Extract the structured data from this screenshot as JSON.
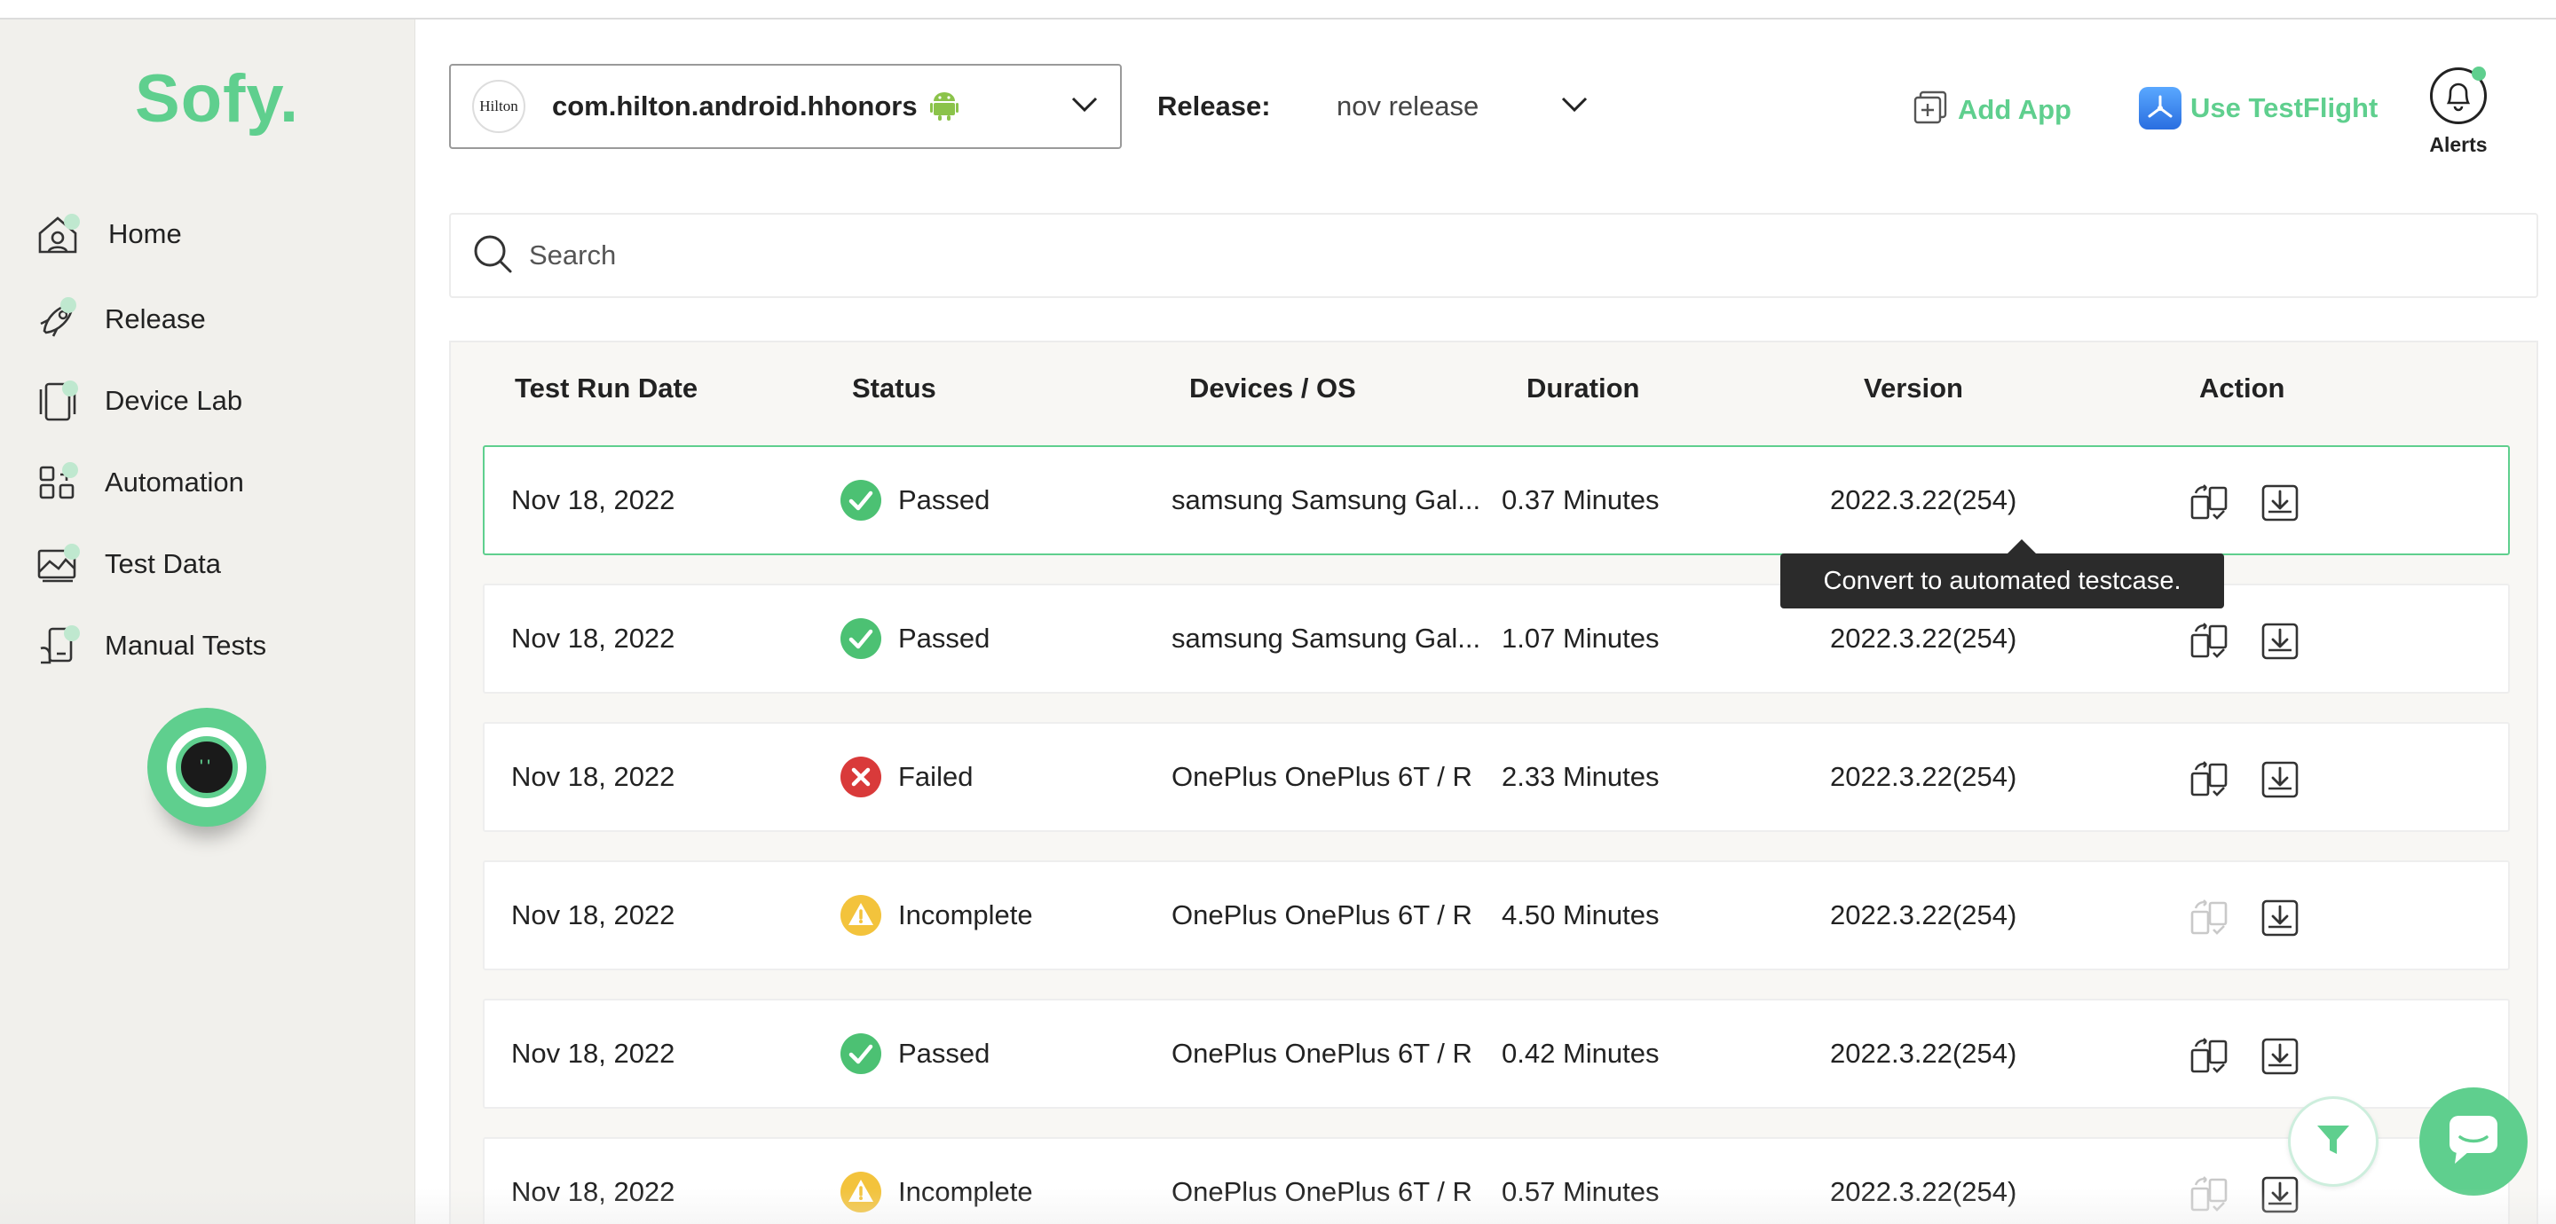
{
  "brand": {
    "logo": "Sofy."
  },
  "sidebar": {
    "items": [
      {
        "label": "Home",
        "icon": "home-icon"
      },
      {
        "label": "Release",
        "icon": "rocket-icon"
      },
      {
        "label": "Device Lab",
        "icon": "device-icon"
      },
      {
        "label": "Automation",
        "icon": "automation-icon"
      },
      {
        "label": "Test Data",
        "icon": "test-data-icon"
      },
      {
        "label": "Manual Tests",
        "icon": "manual-tests-icon"
      }
    ]
  },
  "header": {
    "app_logo_text": "Hilton",
    "app_name": "com.hilton.android.hhonors",
    "release_label": "Release:",
    "release_value": "nov release",
    "add_app": "Add App",
    "testflight": "Use TestFlight",
    "alerts": "Alerts"
  },
  "search": {
    "placeholder": "Search"
  },
  "table": {
    "columns": [
      "Test Run Date",
      "Status",
      "Devices / OS",
      "Duration",
      "Version",
      "Action"
    ],
    "rows": [
      {
        "date": "Nov 18, 2022",
        "status": "Passed",
        "device": "samsung Samsung Gal...",
        "duration": "0.37 Minutes",
        "version": "2022.3.22(254)",
        "convert_enabled": true
      },
      {
        "date": "Nov 18, 2022",
        "status": "Passed",
        "device": "samsung Samsung Gal...",
        "duration": "1.07 Minutes",
        "version": "2022.3.22(254)",
        "convert_enabled": true
      },
      {
        "date": "Nov 18, 2022",
        "status": "Failed",
        "device": "OnePlus OnePlus 6T / R",
        "duration": "2.33 Minutes",
        "version": "2022.3.22(254)",
        "convert_enabled": true
      },
      {
        "date": "Nov 18, 2022",
        "status": "Incomplete",
        "device": "OnePlus OnePlus 6T / R",
        "duration": "4.50 Minutes",
        "version": "2022.3.22(254)",
        "convert_enabled": false
      },
      {
        "date": "Nov 18, 2022",
        "status": "Passed",
        "device": "OnePlus OnePlus 6T / R",
        "duration": "0.42 Minutes",
        "version": "2022.3.22(254)",
        "convert_enabled": true
      },
      {
        "date": "Nov 18, 2022",
        "status": "Incomplete",
        "device": "OnePlus OnePlus 6T / R",
        "duration": "0.57 Minutes",
        "version": "2022.3.22(254)",
        "convert_enabled": false
      }
    ]
  },
  "tooltip": {
    "text": "Convert to automated testcase."
  },
  "colors": {
    "accent": "#5fcf8e",
    "passed": "#4cc173",
    "failed": "#d93a3a",
    "incomplete": "#f3c33c"
  }
}
